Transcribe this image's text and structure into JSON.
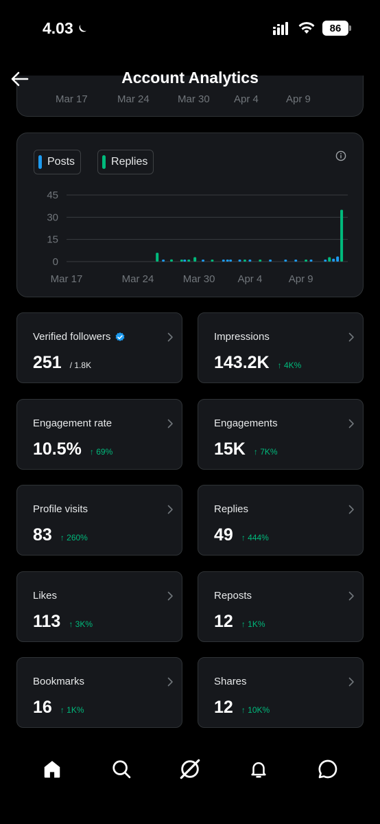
{
  "status": {
    "time": "4.03",
    "battery": "86"
  },
  "header": {
    "title": "Account Analytics"
  },
  "top_card": {
    "date_labels": [
      "Mar 17",
      "Mar 24",
      "Mar 30",
      "Apr 4",
      "Apr 9"
    ]
  },
  "chart_data": {
    "type": "bar",
    "title": "",
    "xlabel": "",
    "ylabel": "",
    "ylim": [
      0,
      45
    ],
    "y_ticks": [
      "45",
      "30",
      "15",
      "0"
    ],
    "x_ticks": [
      "Mar 17",
      "Mar 24",
      "Mar 30",
      "Apr 4",
      "Apr 9"
    ],
    "legend": "top-left",
    "grid": true,
    "series": [
      {
        "name": "Posts",
        "color": "#1d9bf0",
        "points": [
          [
            9.5,
            0.5
          ],
          [
            11.6,
            1
          ],
          [
            13.4,
            0.5
          ],
          [
            15.4,
            0.5
          ],
          [
            15.8,
            1
          ],
          [
            16.1,
            0.5
          ],
          [
            17,
            1
          ],
          [
            18,
            0.5
          ],
          [
            20,
            1
          ],
          [
            21.5,
            0.5
          ],
          [
            22.5,
            0.5
          ],
          [
            24,
            1
          ],
          [
            25.4,
            0.3
          ],
          [
            26.2,
            2
          ],
          [
            26.6,
            3.5
          ]
        ]
      },
      {
        "name": "Replies",
        "color": "#00ba7c",
        "points": [
          [
            8.9,
            6
          ],
          [
            10.3,
            1.5
          ],
          [
            11.3,
            1
          ],
          [
            12,
            1
          ],
          [
            12.6,
            3
          ],
          [
            14.3,
            1
          ],
          [
            17.5,
            0.5
          ],
          [
            19,
            0.5
          ],
          [
            23.5,
            1
          ],
          [
            25.8,
            3
          ],
          [
            27,
            35
          ]
        ]
      }
    ]
  },
  "metrics": [
    {
      "id": "verified-followers",
      "label": "Verified followers",
      "value": "251",
      "sub": "/ 1.8K",
      "verified": true
    },
    {
      "id": "impressions",
      "label": "Impressions",
      "value": "143.2K",
      "delta": "↑ 4K%"
    },
    {
      "id": "engagement-rate",
      "label": "Engagement rate",
      "value": "10.5%",
      "delta": "↑ 69%"
    },
    {
      "id": "engagements",
      "label": "Engagements",
      "value": "15K",
      "delta": "↑ 7K%"
    },
    {
      "id": "profile-visits",
      "label": "Profile visits",
      "value": "83",
      "delta": "↑ 260%"
    },
    {
      "id": "replies",
      "label": "Replies",
      "value": "49",
      "delta": "↑ 444%"
    },
    {
      "id": "likes",
      "label": "Likes",
      "value": "113",
      "delta": "↑ 3K%"
    },
    {
      "id": "reposts",
      "label": "Reposts",
      "value": "12",
      "delta": "↑ 1K%"
    },
    {
      "id": "bookmarks",
      "label": "Bookmarks",
      "value": "16",
      "delta": "↑ 1K%"
    },
    {
      "id": "shares",
      "label": "Shares",
      "value": "12",
      "delta": "↑ 10K%"
    }
  ],
  "nav": [
    "home-icon",
    "search-icon",
    "grok-icon",
    "bell-icon",
    "messages-icon"
  ],
  "colors": {
    "posts": "#1d9bf0",
    "replies": "#00ba7c",
    "delta": "#00ba7c",
    "card": "#16181c",
    "border": "#2f3336"
  }
}
